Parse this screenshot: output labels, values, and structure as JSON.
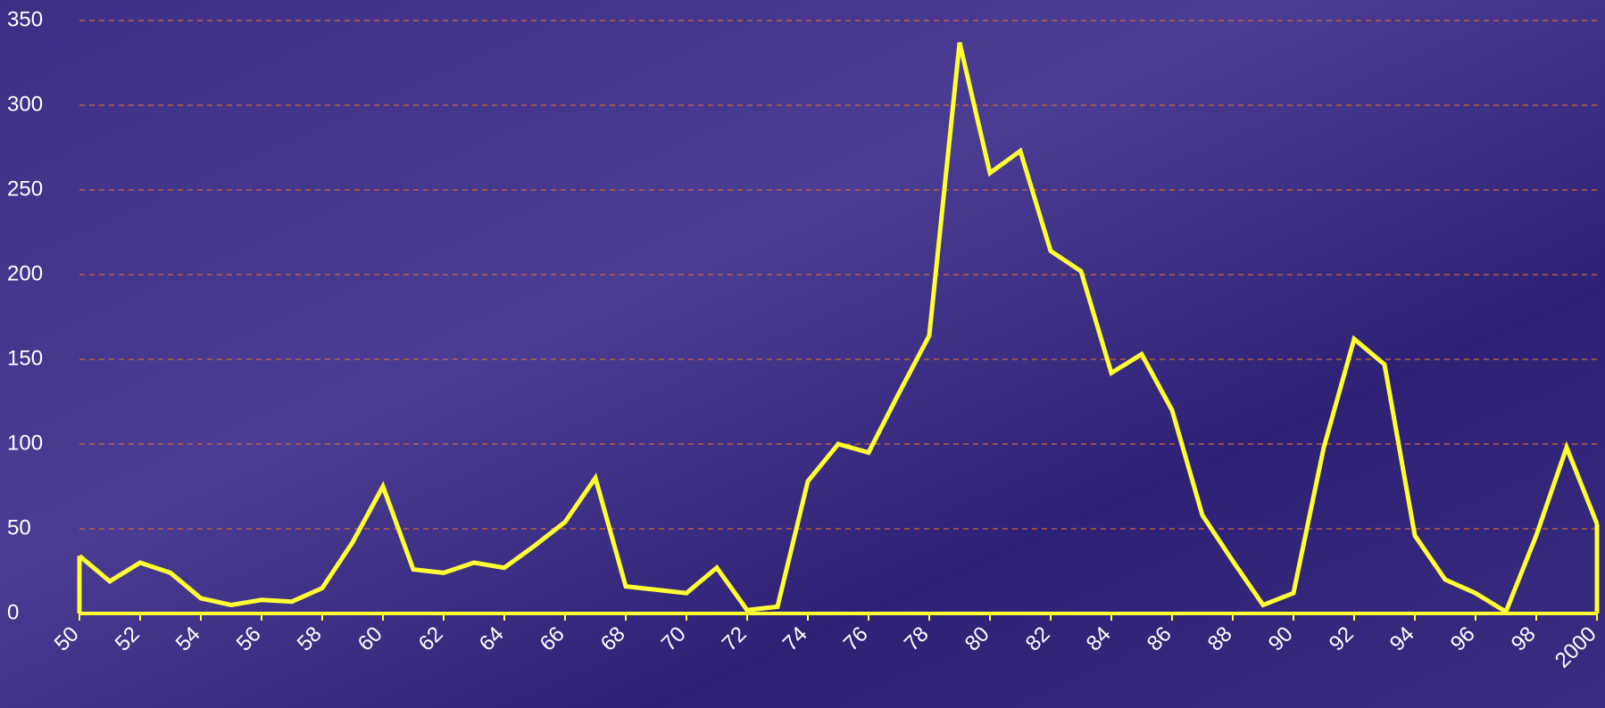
{
  "chart_data": {
    "type": "line",
    "x": [
      1950,
      1951,
      1952,
      1953,
      1954,
      1955,
      1956,
      1957,
      1958,
      1959,
      1960,
      1961,
      1962,
      1963,
      1964,
      1965,
      1966,
      1967,
      1968,
      1969,
      1970,
      1971,
      1972,
      1973,
      1974,
      1975,
      1976,
      1977,
      1978,
      1979,
      1980,
      1981,
      1982,
      1983,
      1984,
      1985,
      1986,
      1987,
      1988,
      1989,
      1990,
      1991,
      1992,
      1993,
      1994,
      1995,
      1996,
      1997,
      1998,
      1999,
      2000
    ],
    "series": [
      {
        "color": "#ffff33",
        "values": [
          34,
          19,
          30,
          24,
          9,
          5,
          8,
          7,
          15,
          42,
          75,
          26,
          24,
          30,
          27,
          40,
          54,
          80,
          16,
          14,
          12,
          27,
          2,
          4,
          78,
          100,
          95,
          130,
          164,
          337,
          260,
          273,
          214,
          202,
          142,
          153,
          120,
          58,
          31,
          5,
          12,
          98,
          162,
          147,
          46,
          20,
          12,
          1,
          46,
          98,
          53
        ]
      }
    ],
    "xlim": [
      1950,
      2000
    ],
    "xticks": [
      {
        "value": 1950,
        "label": "50"
      },
      {
        "value": 1952,
        "label": "52"
      },
      {
        "value": 1954,
        "label": "54"
      },
      {
        "value": 1956,
        "label": "56"
      },
      {
        "value": 1958,
        "label": "58"
      },
      {
        "value": 1960,
        "label": "60"
      },
      {
        "value": 1962,
        "label": "62"
      },
      {
        "value": 1964,
        "label": "64"
      },
      {
        "value": 1966,
        "label": "66"
      },
      {
        "value": 1968,
        "label": "68"
      },
      {
        "value": 1970,
        "label": "70"
      },
      {
        "value": 1972,
        "label": "72"
      },
      {
        "value": 1974,
        "label": "74"
      },
      {
        "value": 1976,
        "label": "76"
      },
      {
        "value": 1978,
        "label": "78"
      },
      {
        "value": 1980,
        "label": "80"
      },
      {
        "value": 1982,
        "label": "82"
      },
      {
        "value": 1984,
        "label": "84"
      },
      {
        "value": 1986,
        "label": "86"
      },
      {
        "value": 1988,
        "label": "88"
      },
      {
        "value": 1990,
        "label": "90"
      },
      {
        "value": 1992,
        "label": "92"
      },
      {
        "value": 1994,
        "label": "94"
      },
      {
        "value": 1996,
        "label": "96"
      },
      {
        "value": 1998,
        "label": "98"
      },
      2000
    ],
    "ylim": [
      0,
      350
    ],
    "yticks": [
      0,
      50,
      100,
      150,
      200,
      250,
      300,
      350
    ],
    "grid": true
  }
}
